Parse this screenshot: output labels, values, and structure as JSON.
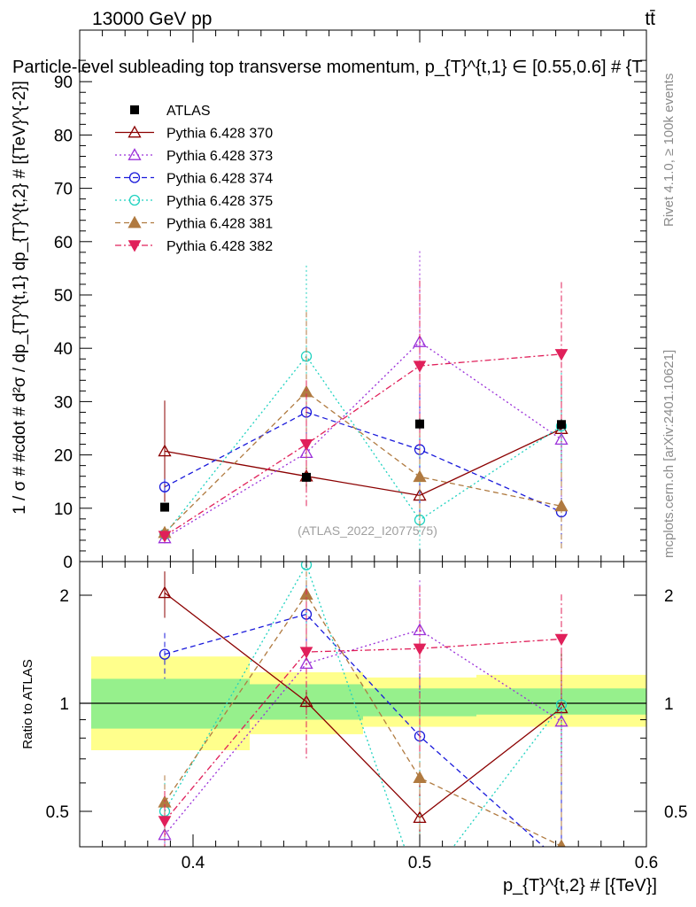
{
  "header": {
    "energy_label": "13000 GeV pp",
    "process_label": "tt̄",
    "title": "Particle-level subleading top transverse momentum, p_{T}^{t,1} ∈ [0.55,0.6] # {T"
  },
  "sidebar": {
    "rivet_label": "Rivet 4.1.0, ≥ 100k events",
    "source_label": "mcplots.cern.ch [arXiv:2401.10621]"
  },
  "watermark": "(ATLAS_2022_I2077575)",
  "chart_data": {
    "type": "line",
    "x": [
      0.3875,
      0.45,
      0.5,
      0.5625
    ],
    "main": {
      "ylabel": "1 / σ # #cdot # d²σ / dp_{T}^{t,1} dp_{T}^{t,2} # [{TeV}^{-2}]",
      "ylim": [
        0,
        95
      ],
      "yticks": [
        "0",
        "10",
        "20",
        "30",
        "40",
        "50",
        "60",
        "70",
        "80",
        "90"
      ]
    },
    "ratio": {
      "ylabel": "Ratio to ATLAS",
      "ylim": [
        0.42,
        2.25
      ],
      "yticks": [
        "0.5",
        "1",
        "2"
      ],
      "band_bins": [
        [
          0.35,
          0.425
        ],
        [
          0.425,
          0.475
        ],
        [
          0.475,
          0.525
        ],
        [
          0.525,
          0.6
        ]
      ],
      "band_inner": [
        [
          0.85,
          1.17
        ],
        [
          0.9,
          1.13
        ],
        [
          0.92,
          1.1
        ],
        [
          0.93,
          1.1
        ]
      ],
      "band_outer": [
        [
          0.74,
          1.35
        ],
        [
          0.82,
          1.22
        ],
        [
          0.86,
          1.18
        ],
        [
          0.86,
          1.2
        ]
      ]
    },
    "xlabel": "p_{T}^{t,2} # [{TeV}]",
    "xlim": [
      0.35,
      0.6
    ],
    "xticks": [
      "0.4",
      "0.5",
      "0.6"
    ],
    "data": {
      "name": "ATLAS",
      "values": [
        10.2,
        15.8,
        25.8,
        25.7
      ],
      "errors": [
        0.5,
        0.5,
        1.0,
        1.0
      ]
    },
    "series": [
      {
        "name": "Pythia 6.428 370",
        "color": "#8b0000",
        "marker": "triangle-open",
        "dash": "solid",
        "values": [
          20.7,
          16.0,
          12.4,
          24.9
        ],
        "err_up": [
          9.5,
          3.0,
          3.0,
          10.0
        ],
        "err_dn": [
          9.5,
          3.0,
          3.0,
          10.0
        ],
        "ratio": [
          2.03,
          1.01,
          0.48,
          0.97
        ],
        "ratio_err_up": [
          0.3,
          0.08,
          0.15,
          0.45
        ],
        "ratio_err_dn": [
          0.3,
          0.08,
          0.15,
          0.45
        ]
      },
      {
        "name": "Pythia 6.428 373",
        "color": "#9b30d9",
        "marker": "triangle-open",
        "dash": "dotted",
        "values": [
          4.4,
          20.4,
          41.2,
          22.9
        ],
        "err_up": [
          1.0,
          2.0,
          17.0,
          12.0
        ],
        "err_dn": [
          1.0,
          2.0,
          17.0,
          12.0
        ],
        "ratio": [
          0.43,
          1.29,
          1.6,
          0.89
        ],
        "ratio_err_up": [
          0.1,
          0.2,
          0.6,
          0.4
        ],
        "ratio_err_dn": [
          0.1,
          0.2,
          0.6,
          0.4
        ]
      },
      {
        "name": "Pythia 6.428 374",
        "color": "#1a1adb",
        "marker": "circle-open",
        "dash": "dashed",
        "values": [
          14.0,
          28.0,
          21.0,
          9.3
        ],
        "err_up": [
          1.5,
          5.0,
          12.0,
          6.0
        ],
        "err_dn": [
          1.5,
          5.0,
          12.0,
          6.0
        ],
        "ratio": [
          1.37,
          1.77,
          0.81,
          0.36
        ],
        "ratio_err_up": [
          0.2,
          0.4,
          0.4,
          0.25
        ],
        "ratio_err_dn": [
          0.2,
          0.4,
          0.4,
          0.25
        ]
      },
      {
        "name": "Pythia 6.428 375",
        "color": "#20d2c0",
        "marker": "circle-open",
        "dash": "dotted",
        "values": [
          5.1,
          38.5,
          7.8,
          25.4
        ],
        "err_up": [
          1.0,
          17.0,
          18.0,
          10.0
        ],
        "err_dn": [
          1.0,
          17.0,
          8.0,
          10.0
        ],
        "ratio": [
          0.5,
          2.43,
          0.3,
          0.99
        ],
        "ratio_err_up": [
          0.1,
          0.9,
          0.7,
          0.4
        ],
        "ratio_err_dn": [
          0.1,
          0.9,
          0.3,
          0.4
        ]
      },
      {
        "name": "Pythia 6.428 381",
        "color": "#b07a40",
        "marker": "triangle-filled",
        "dash": "dashed",
        "values": [
          5.4,
          31.8,
          15.9,
          10.4
        ],
        "err_up": [
          1.0,
          15.0,
          10.0,
          8.0
        ],
        "err_dn": [
          1.0,
          15.0,
          10.0,
          8.0
        ],
        "ratio": [
          0.53,
          2.01,
          0.62,
          0.4
        ],
        "ratio_err_up": [
          0.1,
          0.6,
          0.4,
          0.3
        ],
        "ratio_err_dn": [
          0.1,
          0.6,
          0.4,
          0.3
        ]
      },
      {
        "name": "Pythia 6.428 382",
        "color": "#e0205a",
        "marker": "triangle-down-filled",
        "dash": "dashdot",
        "values": [
          4.8,
          22.0,
          36.7,
          38.9
        ],
        "err_up": [
          1.0,
          12.0,
          16.0,
          13.5
        ],
        "err_dn": [
          1.0,
          12.0,
          16.0,
          13.5
        ],
        "ratio": [
          0.47,
          1.39,
          1.42,
          1.51
        ],
        "ratio_err_up": [
          0.1,
          0.7,
          0.7,
          0.5
        ],
        "ratio_err_dn": [
          0.1,
          0.7,
          0.7,
          0.5
        ]
      }
    ]
  }
}
